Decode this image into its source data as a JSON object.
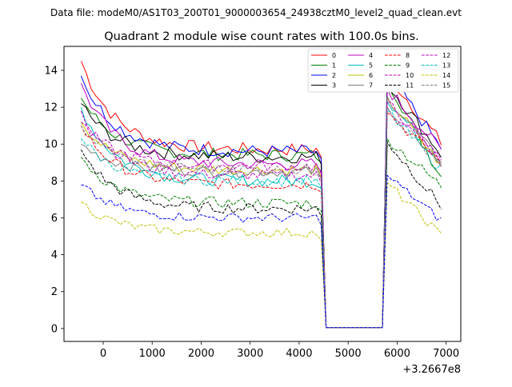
{
  "header": {
    "data_file": "Data file: modeM0/AS1T03_200T01_9000003654_24938cztM0_level2_quad_clean.evt"
  },
  "chart_data": {
    "type": "line",
    "title": "Quadrant 2 module wise count rates with 100.0s bins.",
    "xlabel": "",
    "ylabel": "",
    "x_offset_label": "+3.2667e8",
    "xlim": [
      -800,
      7300
    ],
    "ylim": [
      -0.7,
      15.3
    ],
    "x_ticks": [
      0,
      1000,
      2000,
      3000,
      4000,
      5000,
      6000,
      7000
    ],
    "x_tick_labels": [
      "0",
      "1000",
      "2000",
      "3000",
      "4000",
      "5000",
      "6000",
      "7000"
    ],
    "y_ticks": [
      0,
      2,
      4,
      6,
      8,
      10,
      12,
      14
    ],
    "y_tick_labels": [
      "0",
      "2",
      "4",
      "6",
      "8",
      "10",
      "12",
      "14"
    ],
    "grid": false,
    "legend_position": "top-right",
    "legend_columns": 4,
    "time": {
      "seg1_start": -450,
      "seg1_end": 4450,
      "gap_start": 4550,
      "gap_end": 5700,
      "seg2_start": 5800,
      "seg2_end": 6950,
      "bin": 100
    },
    "series": [
      {
        "name": "0",
        "color": "#ff0000",
        "dash": "solid",
        "start": 14.5,
        "level": 9.7,
        "post_peak": 13.8,
        "post_end": 9.9,
        "noise": 0.35
      },
      {
        "name": "1",
        "color": "#008000",
        "dash": "solid",
        "start": 12.5,
        "level": 9.4,
        "post_peak": 13.5,
        "post_end": 8.0,
        "noise": 0.35
      },
      {
        "name": "2",
        "color": "#0000ff",
        "dash": "solid",
        "start": 13.7,
        "level": 9.6,
        "post_peak": 13.9,
        "post_end": 9.6,
        "noise": 0.35
      },
      {
        "name": "3",
        "color": "#000000",
        "dash": "solid",
        "start": 12.2,
        "level": 9.3,
        "post_peak": 13.3,
        "post_end": 9.3,
        "noise": 0.35
      },
      {
        "name": "4",
        "color": "#bf00bf",
        "dash": "solid",
        "start": 13.3,
        "level": 8.9,
        "post_peak": 13.0,
        "post_end": 9.5,
        "noise": 0.35
      },
      {
        "name": "5",
        "color": "#00bfbf",
        "dash": "solid",
        "start": 12.0,
        "level": 8.0,
        "post_peak": 12.3,
        "post_end": 9.0,
        "noise": 0.35
      },
      {
        "name": "6",
        "color": "#bfbf00",
        "dash": "solid",
        "start": 11.2,
        "level": 8.6,
        "post_peak": 12.5,
        "post_end": 8.7,
        "noise": 0.3
      },
      {
        "name": "7",
        "color": "#808080",
        "dash": "solid",
        "start": 10.0,
        "level": 8.5,
        "post_peak": 12.6,
        "post_end": 8.8,
        "noise": 0.3
      },
      {
        "name": "8",
        "color": "#ff0000",
        "dash": "dashed",
        "start": 11.0,
        "level": 7.8,
        "post_peak": 11.7,
        "post_end": 8.9,
        "noise": 0.3
      },
      {
        "name": "9",
        "color": "#008000",
        "dash": "dashed",
        "start": 9.3,
        "level": 6.8,
        "post_peak": 10.3,
        "post_end": 7.6,
        "noise": 0.3
      },
      {
        "name": "10",
        "color": "#bf00bf",
        "dash": "dashed",
        "start": 11.8,
        "level": 8.3,
        "post_peak": 12.0,
        "post_end": 9.0,
        "noise": 0.3
      },
      {
        "name": "11",
        "color": "#000000",
        "dash": "dashed",
        "start": 9.7,
        "level": 6.5,
        "post_peak": 10.1,
        "post_end": 6.5,
        "noise": 0.3
      },
      {
        "name": "12",
        "color": "#bf00bf",
        "dash": "dashed",
        "start": 11.2,
        "level": 8.8,
        "post_peak": 12.3,
        "post_end": 9.0,
        "noise": 0.3
      },
      {
        "name": "13",
        "color": "#00bfbf",
        "dash": "dashed",
        "start": 10.3,
        "level": 8.0,
        "post_peak": 11.8,
        "post_end": 8.5,
        "noise": 0.3
      },
      {
        "name": "14",
        "color": "#bfbf00",
        "dash": "dashed",
        "start": 6.85,
        "level": 5.2,
        "post_peak": 7.9,
        "post_end": 4.9,
        "noise": 0.25
      },
      {
        "name": "15",
        "color": "#808080",
        "dash": "dashed",
        "start": 11.0,
        "level": 8.6,
        "post_peak": 12.0,
        "post_end": 8.6,
        "noise": 0.3
      },
      {
        "name": "2-low",
        "legend": false,
        "color": "#0000ff",
        "dash": "dashed",
        "start": 7.8,
        "level": 6.0,
        "post_peak": 8.3,
        "post_end": 5.75,
        "noise": 0.25
      }
    ]
  }
}
